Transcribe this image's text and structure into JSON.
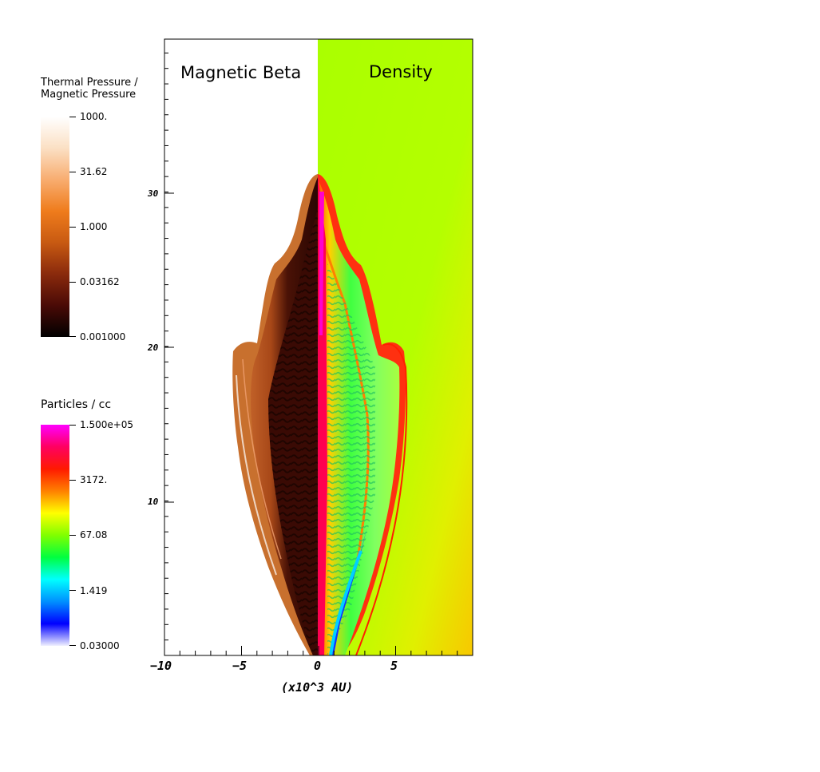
{
  "colorbars": [
    {
      "title_line1": "Thermal Pressure /",
      "title_line2": "Magnetic Pressure",
      "labels": [
        "1000.",
        "31.62",
        "1.000",
        "0.03162",
        "0.001000"
      ],
      "gradient": [
        "#ffffff",
        "#fbe0c4",
        "#f8ad70",
        "#ef7c1c",
        "#c85a12",
        "#8a2a0c",
        "#4a0a06",
        "#000000"
      ]
    },
    {
      "title_line1": "Particles / cc",
      "labels": [
        "1.500e+05",
        "3172.",
        "67.08",
        "1.419",
        "0.03000"
      ],
      "gradient": [
        "#ff00ff",
        "#ff0060",
        "#ff1a00",
        "#ff8000",
        "#ffff00",
        "#80ff00",
        "#00ff40",
        "#00ffff",
        "#0090ff",
        "#0000ff",
        "#f0f0ff"
      ]
    }
  ],
  "panels": {
    "left_title": "Magnetic Beta",
    "right_title": "Density"
  },
  "axes": {
    "x_ticks": [
      "−10",
      "−5",
      "0",
      "5"
    ],
    "y_ticks": [
      "30",
      "20",
      "10"
    ],
    "x_unit": "(x10^3 AU)"
  },
  "colors": {
    "density_background": "#aaff00",
    "density_lower": "#f0e000",
    "beta_background": "#ffffff",
    "beta_dark": "#3a0a04",
    "beta_orange": "#c8602a",
    "shock_red": "#ff2000",
    "jet_magenta": "#ff00c0"
  }
}
